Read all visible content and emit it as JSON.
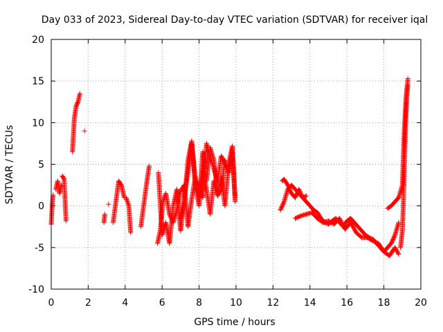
{
  "chart_data": {
    "type": "scatter",
    "title": "Day 033 of 2023, Sidereal Day-to-day VTEC variation (SDTVAR) for receiver iqal",
    "xlabel": "GPS time / hours",
    "ylabel": "SDTVAR / TECUs",
    "xlim": [
      0,
      20
    ],
    "ylim": [
      -10,
      20
    ],
    "xticks": [
      0,
      2,
      4,
      6,
      8,
      10,
      12,
      14,
      16,
      18,
      20
    ],
    "yticks": [
      -10,
      -5,
      0,
      5,
      10,
      15,
      20
    ],
    "xtick_labels": [
      "0",
      "2",
      "4",
      "6",
      "8",
      "10",
      "12",
      "14",
      "16",
      "18",
      "20"
    ],
    "ytick_labels": [
      "-10",
      "-5",
      "0",
      "5",
      "10",
      "15",
      "20"
    ],
    "grid": true,
    "marker": "+",
    "colors": {
      "series": "#ff0000",
      "grid": "#a0a0a0",
      "axis": "#000000"
    },
    "series": [
      {
        "name": "SDTVAR",
        "segments": [
          {
            "x": [
              0.0,
              0.05,
              0.1
            ],
            "y": [
              -2.2,
              0.0,
              1.3
            ]
          },
          {
            "x": [
              0.25,
              0.35,
              0.45,
              0.55
            ],
            "y": [
              2.0,
              3.0,
              1.5,
              2.5
            ]
          },
          {
            "x": [
              0.6,
              0.7,
              0.8
            ],
            "y": [
              3.6,
              3.2,
              -1.8
            ]
          },
          {
            "x": [
              1.15,
              1.25,
              1.35,
              1.45,
              1.55
            ],
            "y": [
              6.5,
              10.5,
              12.0,
              12.5,
              13.5
            ]
          },
          {
            "x": [
              1.8
            ],
            "y": [
              9.0
            ]
          },
          {
            "x": [
              2.85,
              2.9
            ],
            "y": [
              -2.0,
              -1.0
            ]
          },
          {
            "x": [
              3.1
            ],
            "y": [
              0.2
            ]
          },
          {
            "x": [
              3.35,
              3.5,
              3.65,
              3.8,
              3.95
            ],
            "y": [
              -2.0,
              0.5,
              3.0,
              2.5,
              1.0
            ]
          },
          {
            "x": [
              4.05,
              4.2,
              4.3
            ],
            "y": [
              1.0,
              0.0,
              -3.2
            ]
          },
          {
            "x": [
              4.85,
              5.0,
              5.15,
              5.3
            ],
            "y": [
              -2.5,
              0.0,
              2.5,
              4.8
            ]
          },
          {
            "x": [
              5.75,
              5.9,
              6.05,
              6.2,
              6.4,
              6.6,
              6.8,
              7.0,
              7.2,
              7.4,
              7.6,
              7.8,
              8.0,
              8.2,
              8.4,
              8.6,
              8.8,
              9.0,
              9.2,
              9.4,
              9.6,
              9.8,
              9.95
            ],
            "y": [
              -4.5,
              -3.0,
              0.5,
              1.5,
              -1.0,
              -2.0,
              -0.5,
              1.8,
              2.5,
              -2.5,
              0.8,
              3.5,
              1.0,
              4.5,
              2.0,
              -1.0,
              3.0,
              1.2,
              2.0,
              5.5,
              4.0,
              6.5,
              1.0
            ]
          },
          {
            "x": [
              5.8,
              6.0,
              6.2,
              6.4,
              6.6,
              6.8,
              7.0,
              7.2,
              7.4,
              7.6,
              7.8,
              8.0,
              8.2,
              8.4,
              8.6,
              8.8,
              9.0,
              9.2,
              9.4,
              9.6,
              9.8,
              9.95
            ],
            "y": [
              4.0,
              -3.5,
              -2.0,
              -4.5,
              0.0,
              2.0,
              -3.0,
              1.0,
              4.0,
              7.5,
              2.5,
              0.0,
              6.5,
              3.0,
              7.0,
              5.5,
              1.5,
              3.5,
              0.0,
              5.0,
              7.2,
              0.5
            ]
          },
          {
            "x": [
              7.0,
              7.2,
              7.4,
              7.6,
              7.8,
              8.0,
              8.2,
              8.4,
              8.6,
              8.8,
              9.0,
              9.2,
              9.4,
              9.6,
              9.8,
              9.95
            ],
            "y": [
              -1.5,
              0.5,
              5.5,
              7.8,
              3.0,
              2.5,
              1.0,
              7.5,
              6.0,
              4.5,
              3.0,
              6.0,
              5.0,
              4.5,
              6.8,
              1.0
            ]
          },
          {
            "x": [
              12.5,
              12.6,
              12.8,
              13.0,
              13.2,
              13.4,
              13.6,
              13.8,
              14.0,
              14.2,
              14.4,
              14.6,
              14.8,
              15.0,
              15.2,
              15.4,
              15.6,
              15.8,
              16.0,
              16.2,
              16.4,
              16.6,
              16.8,
              17.0,
              17.2,
              17.4,
              17.6,
              17.8,
              18.0,
              18.2,
              18.4,
              18.6,
              18.8
            ],
            "y": [
              3.0,
              3.2,
              2.5,
              1.5,
              1.0,
              2.0,
              1.0,
              0.5,
              0.0,
              -0.5,
              -0.8,
              -1.5,
              -2.0,
              -2.2,
              -1.8,
              -1.5,
              -2.0,
              -2.5,
              -1.8,
              -1.5,
              -2.0,
              -2.5,
              -3.0,
              -3.5,
              -3.8,
              -4.0,
              -4.5,
              -5.0,
              -5.5,
              -5.0,
              -4.5,
              -3.5,
              -2.0
            ]
          },
          {
            "x": [
              12.4,
              12.6,
              12.8,
              13.0,
              13.2,
              13.4,
              13.6,
              13.8
            ],
            "y": [
              -0.5,
              0.5,
              2.0,
              2.5,
              2.0,
              1.5,
              1.0,
              1.2
            ]
          },
          {
            "x": [
              13.2,
              13.5,
              13.8,
              14.1,
              14.4,
              14.7,
              15.0,
              15.3,
              15.6,
              15.9,
              16.2,
              16.5,
              16.8,
              17.1,
              17.4,
              17.7,
              18.0,
              18.3,
              18.6,
              18.8
            ],
            "y": [
              -1.5,
              -1.2,
              -1.0,
              -0.8,
              -1.5,
              -2.0,
              -1.8,
              -2.2,
              -1.5,
              -2.8,
              -2.0,
              -3.2,
              -3.8,
              -3.8,
              -4.2,
              -4.5,
              -5.5,
              -6.0,
              -5.0,
              -5.8
            ]
          },
          {
            "x": [
              18.2,
              18.4,
              18.6,
              18.8,
              19.0,
              19.1,
              19.2,
              19.3
            ],
            "y": [
              -0.3,
              0.0,
              0.5,
              1.0,
              2.5,
              9.0,
              13.0,
              15.3
            ]
          },
          {
            "x": [
              18.9,
              19.0,
              19.05,
              19.1,
              19.15,
              19.2,
              19.25,
              19.3
            ],
            "y": [
              -5.0,
              -3.0,
              0.0,
              4.0,
              8.0,
              11.0,
              13.5,
              14.5
            ]
          }
        ]
      }
    ]
  }
}
